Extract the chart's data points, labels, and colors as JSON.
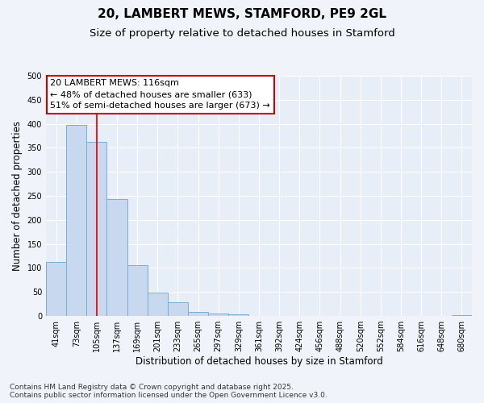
{
  "title": "20, LAMBERT MEWS, STAMFORD, PE9 2GL",
  "subtitle": "Size of property relative to detached houses in Stamford",
  "xlabel": "Distribution of detached houses by size in Stamford",
  "ylabel": "Number of detached properties",
  "categories": [
    "41sqm",
    "73sqm",
    "105sqm",
    "137sqm",
    "169sqm",
    "201sqm",
    "233sqm",
    "265sqm",
    "297sqm",
    "329sqm",
    "361sqm",
    "392sqm",
    "424sqm",
    "456sqm",
    "488sqm",
    "520sqm",
    "552sqm",
    "584sqm",
    "616sqm",
    "648sqm",
    "680sqm"
  ],
  "values": [
    112,
    397,
    363,
    243,
    105,
    49,
    29,
    9,
    5,
    4,
    0,
    0,
    0,
    0,
    0,
    0,
    0,
    0,
    0,
    0,
    2
  ],
  "bar_color": "#c8d8ee",
  "bar_edge_color": "#7aadd4",
  "red_line_x": 2.0,
  "annotation_text_line1": "20 LAMBERT MEWS: 116sqm",
  "annotation_text_line2": "← 48% of detached houses are smaller (633)",
  "annotation_text_line3": "51% of semi-detached houses are larger (673) →",
  "annotation_box_color": "#ffffff",
  "annotation_box_edge": "#cc0000",
  "ylim": [
    0,
    500
  ],
  "yticks": [
    0,
    50,
    100,
    150,
    200,
    250,
    300,
    350,
    400,
    450,
    500
  ],
  "footnote": "Contains HM Land Registry data © Crown copyright and database right 2025.\nContains public sector information licensed under the Open Government Licence v3.0.",
  "bg_color": "#f0f4fa",
  "plot_bg_color": "#e8eef8",
  "grid_color": "#ffffff",
  "title_fontsize": 11,
  "subtitle_fontsize": 9.5,
  "axis_label_fontsize": 8.5,
  "tick_fontsize": 7,
  "footnote_fontsize": 6.5,
  "annotation_fontsize": 8
}
